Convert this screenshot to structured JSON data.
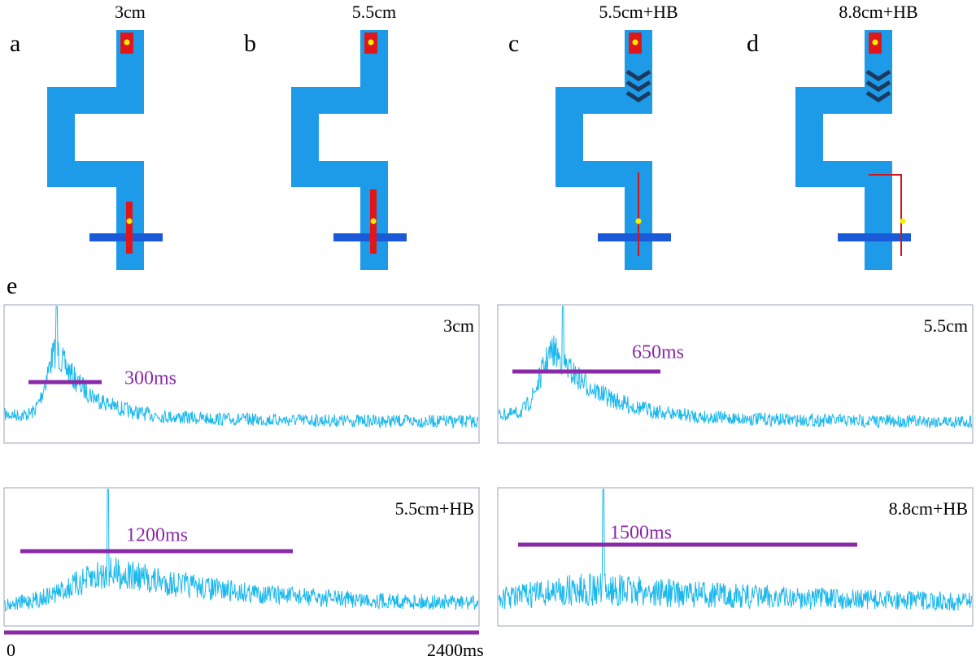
{
  "panel_labels": [
    "a",
    "b",
    "c",
    "d",
    "e"
  ],
  "diagrams": [
    {
      "title": "3cm"
    },
    {
      "title": "5.5cm"
    },
    {
      "title": "5.5cm+HB"
    },
    {
      "title": "8.8cm+HB"
    }
  ],
  "traces": [
    {
      "label": "3cm",
      "duration": "300ms"
    },
    {
      "label": "5.5cm",
      "duration": "650ms"
    },
    {
      "label": "5.5cm+HB",
      "duration": "1200ms"
    },
    {
      "label": "8.8cm+HB",
      "duration": "1500ms"
    }
  ],
  "axis": {
    "start": "0",
    "end": "2400ms"
  }
}
